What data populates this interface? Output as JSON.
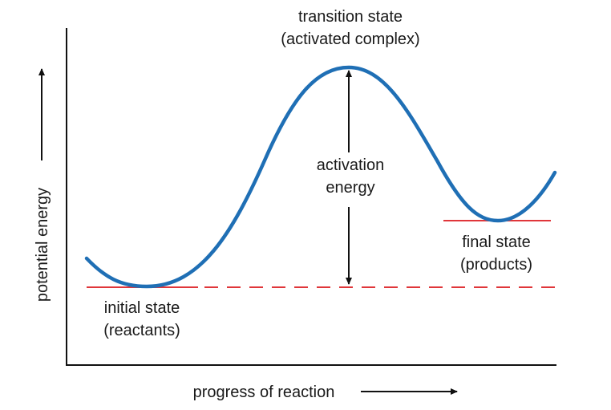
{
  "labels": {
    "transition_line1": "transition state",
    "transition_line2": "(activated complex)",
    "activation_line1": "activation",
    "activation_line2": "energy",
    "final_line1": "final state",
    "final_line2": "(products)",
    "initial_line1": "initial state",
    "initial_line2": "(reactants)",
    "y_axis": "potential energy",
    "x_axis": "progress of reaction"
  },
  "colors": {
    "curve": "#1f6fb5",
    "energy_levels": "#e0363a",
    "axes": "#111111"
  }
}
